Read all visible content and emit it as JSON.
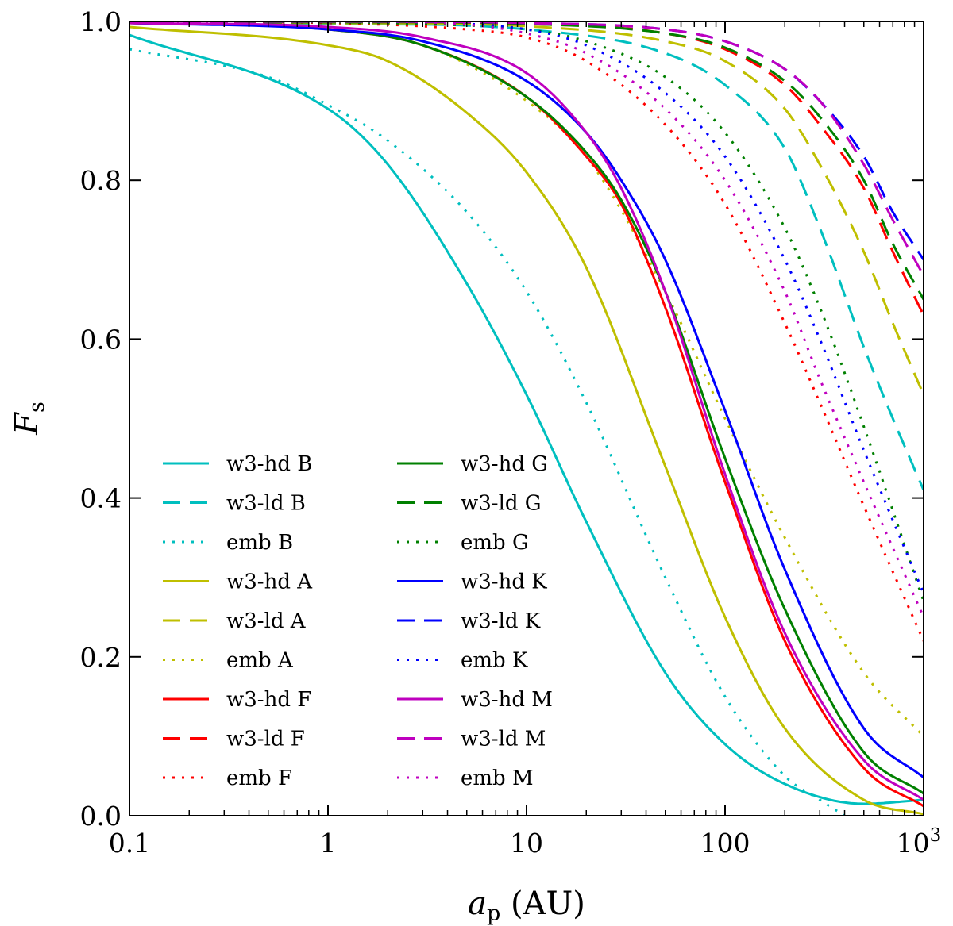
{
  "colors": {
    "B": "#00bfbf",
    "A": "#bfbf00",
    "F": "#ff0000",
    "G": "#008000",
    "K": "#0000ff",
    "M": "#bf00bf"
  },
  "chart_data": {
    "type": "line",
    "title": "",
    "xlabel_var": "a",
    "xlabel_sub": "p",
    "xlabel_unit": " (AU)",
    "ylabel_var": "F",
    "ylabel_sub": "s",
    "xscale": "log",
    "xlim": [
      0.1,
      1000
    ],
    "ylim": [
      0.0,
      1.0
    ],
    "grid": false,
    "legend_position": "lower-left, two columns",
    "xticks": [
      {
        "value": 0.1,
        "label": "0.1"
      },
      {
        "value": 1,
        "label": "1"
      },
      {
        "value": 10,
        "label": "10"
      },
      {
        "value": 100,
        "label": "100"
      },
      {
        "value": 1000,
        "label": "10",
        "sup": "3"
      }
    ],
    "yticks": [
      {
        "value": 0.0,
        "label": "0.0"
      },
      {
        "value": 0.2,
        "label": "0.2"
      },
      {
        "value": 0.4,
        "label": "0.4"
      },
      {
        "value": 0.6,
        "label": "0.6"
      },
      {
        "value": 0.8,
        "label": "0.8"
      },
      {
        "value": 1.0,
        "label": "1.0"
      }
    ],
    "series": [
      {
        "name": "w3-hd B",
        "color_key": "B",
        "style": "solid",
        "x": [
          0.1,
          1,
          2,
          5,
          10,
          20,
          50,
          100,
          200,
          500,
          1000
        ],
        "y": [
          0.983,
          0.89,
          0.82,
          0.67,
          0.53,
          0.37,
          0.18,
          0.09,
          0.04,
          0.015,
          0.02
        ]
      },
      {
        "name": "w3-ld B",
        "color_key": "B",
        "style": "dashed",
        "x": [
          0.1,
          1,
          10,
          50,
          100,
          200,
          300,
          500,
          700,
          1000
        ],
        "y": [
          0.998,
          0.997,
          0.99,
          0.96,
          0.92,
          0.84,
          0.74,
          0.59,
          0.5,
          0.41
        ]
      },
      {
        "name": "emb B",
        "color_key": "B",
        "style": "dotted",
        "x": [
          0.1,
          0.5,
          1,
          2,
          5,
          10,
          20,
          50,
          100,
          200,
          300,
          400
        ],
        "y": [
          0.965,
          0.93,
          0.895,
          0.85,
          0.76,
          0.66,
          0.52,
          0.3,
          0.15,
          0.05,
          0.02,
          0.0
        ]
      },
      {
        "name": "w3-hd A",
        "color_key": "A",
        "style": "solid",
        "x": [
          0.1,
          1,
          2,
          5,
          10,
          20,
          50,
          100,
          200,
          500,
          1000
        ],
        "y": [
          0.993,
          0.97,
          0.95,
          0.885,
          0.81,
          0.69,
          0.44,
          0.25,
          0.11,
          0.02,
          0.002
        ]
      },
      {
        "name": "w3-ld A",
        "color_key": "A",
        "style": "dashed",
        "x": [
          0.1,
          1,
          10,
          50,
          100,
          200,
          300,
          500,
          700,
          1000
        ],
        "y": [
          0.999,
          0.998,
          0.994,
          0.975,
          0.95,
          0.89,
          0.82,
          0.71,
          0.62,
          0.53
        ]
      },
      {
        "name": "emb A",
        "color_key": "A",
        "style": "dotted",
        "x": [
          0.1,
          1,
          3,
          10,
          20,
          50,
          100,
          200,
          500,
          1000
        ],
        "y": [
          0.998,
          0.99,
          0.97,
          0.9,
          0.83,
          0.66,
          0.5,
          0.35,
          0.18,
          0.1
        ]
      },
      {
        "name": "w3-hd F",
        "color_key": "F",
        "style": "solid",
        "x": [
          0.1,
          1,
          3,
          10,
          20,
          30,
          50,
          100,
          200,
          500,
          1000
        ],
        "y": [
          0.998,
          0.99,
          0.97,
          0.905,
          0.83,
          0.77,
          0.64,
          0.42,
          0.22,
          0.06,
          0.012
        ]
      },
      {
        "name": "w3-ld F",
        "color_key": "F",
        "style": "dashed",
        "x": [
          0.1,
          1,
          10,
          50,
          100,
          200,
          300,
          500,
          700,
          1000
        ],
        "y": [
          0.999,
          0.999,
          0.997,
          0.985,
          0.965,
          0.92,
          0.87,
          0.79,
          0.71,
          0.63
        ]
      },
      {
        "name": "emb F",
        "color_key": "F",
        "style": "dotted",
        "x": [
          0.1,
          1,
          5,
          10,
          20,
          50,
          100,
          200,
          300,
          500,
          1000
        ],
        "y": [
          0.999,
          0.998,
          0.99,
          0.98,
          0.95,
          0.87,
          0.77,
          0.62,
          0.52,
          0.39,
          0.22
        ]
      },
      {
        "name": "w3-hd G",
        "color_key": "G",
        "style": "solid",
        "x": [
          0.1,
          1,
          3,
          10,
          20,
          30,
          50,
          100,
          200,
          500,
          1000
        ],
        "y": [
          0.998,
          0.99,
          0.97,
          0.905,
          0.835,
          0.775,
          0.66,
          0.45,
          0.26,
          0.08,
          0.028
        ]
      },
      {
        "name": "w3-ld G",
        "color_key": "G",
        "style": "dashed",
        "x": [
          0.1,
          1,
          10,
          50,
          100,
          200,
          300,
          500,
          700,
          1000
        ],
        "y": [
          0.999,
          0.999,
          0.997,
          0.985,
          0.967,
          0.925,
          0.88,
          0.8,
          0.72,
          0.65
        ]
      },
      {
        "name": "emb G",
        "color_key": "G",
        "style": "dotted",
        "x": [
          0.1,
          1,
          5,
          10,
          20,
          50,
          100,
          200,
          300,
          500,
          1000
        ],
        "y": [
          1.0,
          0.999,
          0.995,
          0.99,
          0.975,
          0.93,
          0.86,
          0.74,
          0.64,
          0.49,
          0.27
        ]
      },
      {
        "name": "w3-hd K",
        "color_key": "K",
        "style": "solid",
        "x": [
          0.1,
          1,
          3,
          10,
          20,
          30,
          50,
          100,
          200,
          500,
          1000
        ],
        "y": [
          0.998,
          0.99,
          0.975,
          0.925,
          0.86,
          0.8,
          0.7,
          0.51,
          0.31,
          0.11,
          0.048
        ]
      },
      {
        "name": "w3-ld K",
        "color_key": "K",
        "style": "dashed",
        "x": [
          0.1,
          1,
          10,
          50,
          100,
          200,
          300,
          500,
          700,
          1000
        ],
        "y": [
          1.0,
          1.0,
          0.998,
          0.99,
          0.975,
          0.94,
          0.9,
          0.83,
          0.76,
          0.7
        ]
      },
      {
        "name": "emb K",
        "color_key": "K",
        "style": "dotted",
        "x": [
          0.1,
          1,
          5,
          10,
          20,
          50,
          100,
          200,
          300,
          500,
          1000
        ],
        "y": [
          1.0,
          1.0,
          0.997,
          0.99,
          0.97,
          0.91,
          0.83,
          0.7,
          0.6,
          0.46,
          0.28
        ]
      },
      {
        "name": "w3-hd M",
        "color_key": "M",
        "style": "solid",
        "x": [
          0.1,
          1,
          3,
          10,
          20,
          30,
          50,
          100,
          200,
          500,
          1000
        ],
        "y": [
          0.998,
          0.993,
          0.98,
          0.935,
          0.86,
          0.79,
          0.66,
          0.43,
          0.23,
          0.07,
          0.02
        ]
      },
      {
        "name": "w3-ld M",
        "color_key": "M",
        "style": "dashed",
        "x": [
          0.1,
          1,
          10,
          50,
          100,
          200,
          300,
          500,
          700,
          1000
        ],
        "y": [
          1.0,
          1.0,
          0.998,
          0.99,
          0.975,
          0.94,
          0.9,
          0.82,
          0.75,
          0.68
        ]
      },
      {
        "name": "emb M",
        "color_key": "M",
        "style": "dotted",
        "x": [
          0.1,
          1,
          5,
          10,
          20,
          50,
          100,
          200,
          300,
          500,
          1000
        ],
        "y": [
          1.0,
          1.0,
          0.996,
          0.985,
          0.96,
          0.89,
          0.8,
          0.66,
          0.55,
          0.42,
          0.25
        ]
      }
    ]
  }
}
